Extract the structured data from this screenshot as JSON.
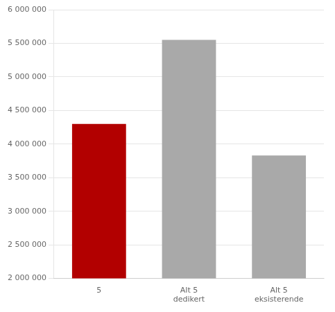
{
  "chart_data": {
    "type": "bar",
    "categories": [
      "5",
      "Alt 5\ndedikert",
      "Alt 5\neksisterende"
    ],
    "values": [
      4300000,
      5550000,
      3830000
    ],
    "colors": [
      "#b20000",
      "#a9a9a9",
      "#a9a9a9"
    ],
    "ylim": [
      2000000,
      6000000
    ],
    "yticks": [
      {
        "value": 2000000,
        "label": "2 000 000"
      },
      {
        "value": 2500000,
        "label": "2 500 000"
      },
      {
        "value": 3000000,
        "label": "3 000 000"
      },
      {
        "value": 3500000,
        "label": "3 500 000"
      },
      {
        "value": 4000000,
        "label": "4 000 000"
      },
      {
        "value": 4500000,
        "label": "4 500 000"
      },
      {
        "value": 5000000,
        "label": "5 000 000"
      },
      {
        "value": 5500000,
        "label": "5 500 000"
      },
      {
        "value": 6000000,
        "label": "6 000 000"
      }
    ],
    "grid": true
  }
}
